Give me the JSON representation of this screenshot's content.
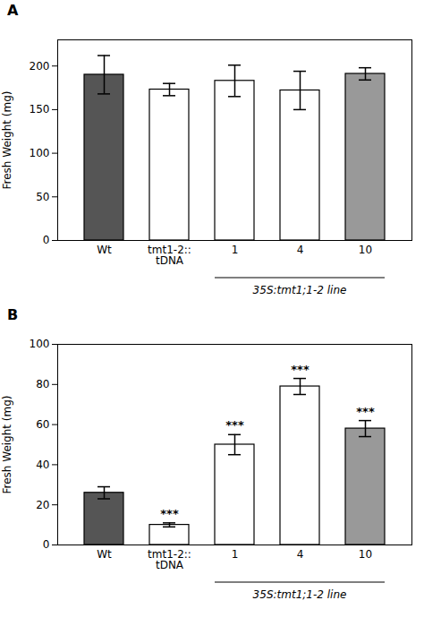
{
  "chart_data": [
    {
      "type": "bar",
      "title": "A",
      "categories": [
        "Wt",
        "tmt1-2::\ntDNA",
        "1",
        "4",
        "10"
      ],
      "values": [
        190,
        173,
        183,
        172,
        191
      ],
      "errors": [
        22,
        7,
        18,
        22,
        7
      ],
      "colors": [
        "#555555",
        "#ffffff",
        "#ffffff",
        "#ffffff",
        "#999999"
      ],
      "ylabel": "Fresh Weight (mg)",
      "ylim": [
        0,
        230
      ],
      "yticks": [
        0,
        50,
        100,
        150,
        200
      ],
      "annotations": [
        {
          "text": "35S:tmt1;1-2 line",
          "categories": [
            "1",
            "4",
            "10"
          ]
        }
      ]
    },
    {
      "type": "bar",
      "title": "B",
      "categories": [
        "Wt",
        "tmt1-2::\ntDNA",
        "1",
        "4",
        "10"
      ],
      "values": [
        26,
        10,
        50,
        79,
        58
      ],
      "errors": [
        3,
        1,
        5,
        4,
        4
      ],
      "significance": [
        null,
        "***",
        "***",
        "***",
        "***"
      ],
      "colors": [
        "#555555",
        "#ffffff",
        "#ffffff",
        "#ffffff",
        "#999999"
      ],
      "ylabel": "Fresh Weight (mg)",
      "ylim": [
        0,
        100
      ],
      "yticks": [
        0,
        20,
        40,
        60,
        80,
        100
      ],
      "annotations": [
        {
          "text": "35S:tmt1;1-2 line",
          "categories": [
            "1",
            "4",
            "10"
          ]
        }
      ]
    }
  ]
}
